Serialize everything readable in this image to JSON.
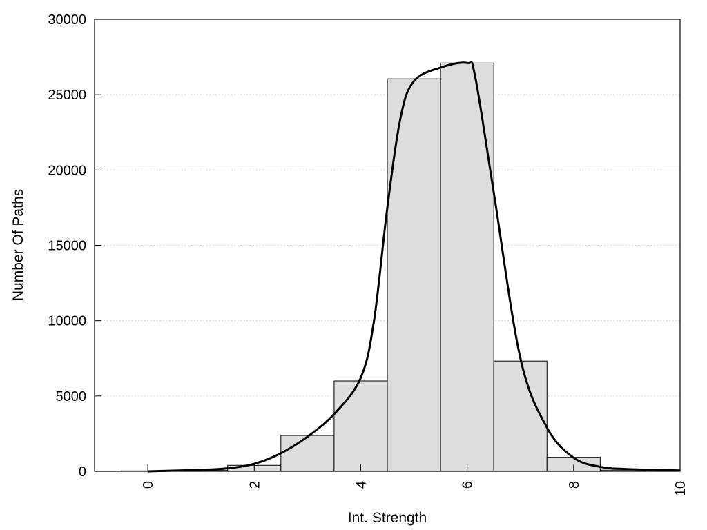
{
  "chart_data": {
    "type": "bar",
    "title": "",
    "xlabel": "Int. Strength",
    "ylabel": "Number Of Paths",
    "xlim": [
      -1,
      10
    ],
    "ylim": [
      0,
      30000
    ],
    "x_ticks": [
      0,
      2,
      4,
      6,
      8,
      10
    ],
    "y_ticks": [
      0,
      5000,
      10000,
      15000,
      20000,
      25000,
      30000
    ],
    "grid": "horizontal dotted",
    "legend": "none",
    "bars": {
      "x": [
        0,
        1,
        2,
        3,
        4,
        5,
        6,
        7,
        8,
        9
      ],
      "values": [
        30,
        60,
        400,
        2380,
        6000,
        26050,
        27100,
        7320,
        930,
        80
      ],
      "fill": "#dddddd",
      "edge": "#000000"
    },
    "curve": {
      "x": [
        0,
        1,
        1.5,
        2,
        2.5,
        3,
        3.5,
        4,
        4.25,
        4.5,
        4.75,
        5,
        5.5,
        6,
        6.15,
        6.5,
        7,
        7.5,
        8,
        8.5,
        9,
        10
      ],
      "y": [
        0,
        100,
        200,
        500,
        1200,
        2300,
        3800,
        6200,
        10000,
        17500,
        23500,
        25900,
        26800,
        27100,
        26200,
        18500,
        7500,
        2900,
        900,
        300,
        150,
        60
      ],
      "color": "#000000"
    }
  }
}
